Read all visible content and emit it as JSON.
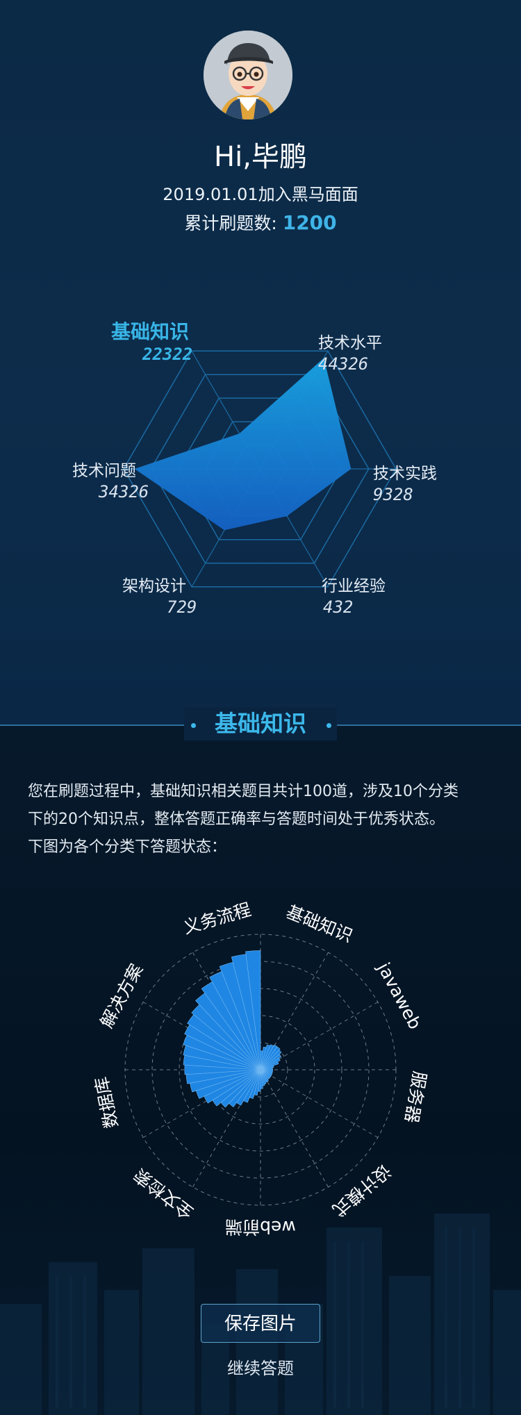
{
  "profile": {
    "greeting": "Hi,毕鹏",
    "join_text": "2019.01.01加入黑马面面",
    "total_label": "累计刷题数: ",
    "total_value": "1200"
  },
  "radar": {
    "dimensions": [
      {
        "label": "基础知识",
        "value": 22322,
        "display": "22322",
        "active": true
      },
      {
        "label": "技术水平",
        "value": 44326,
        "display": "44326",
        "active": false
      },
      {
        "label": "技术实践",
        "value": 9328,
        "display": "9328",
        "active": false
      },
      {
        "label": "行业经验",
        "value": 432,
        "display": "432",
        "active": false
      },
      {
        "label": "架构设计",
        "value": 729,
        "display": "729",
        "active": false
      },
      {
        "label": "技术问题",
        "value": 34326,
        "display": "34326",
        "active": false
      }
    ],
    "relative_levels": [
      0.3,
      0.94,
      0.67,
      0.4,
      0.52,
      0.92
    ],
    "colors": {
      "grid": "#1b6aa2",
      "fill_top": "#19a3e3",
      "fill_bottom": "#1461c4",
      "active": "#39b6e8"
    }
  },
  "section": {
    "title": "基础知识"
  },
  "description": {
    "line1": "您在刷题过程中，基础知识相关题目共计100道，涉及10个分类",
    "line2": "下的20个知识点，整体答题正确率与答题时间处于优秀状态。",
    "line3": "下图为各个分类下答题状态："
  },
  "polar": {
    "categories": [
      "义务流程",
      "基础知识",
      "javaweb",
      "服务器",
      "设计模式",
      "web前端",
      "全文检索",
      "数据库",
      "解决方案"
    ],
    "bars": [
      0.14,
      0.17,
      0.19,
      0.2,
      0.21,
      0.21,
      0.2,
      0.18,
      0.16,
      0.14,
      0.1,
      0.09,
      0.09,
      0.09,
      0.09,
      0.09,
      0.09,
      0.09,
      0.09,
      0.09,
      0.1,
      0.1,
      0.11,
      0.12,
      0.14,
      0.16,
      0.19,
      0.22,
      0.26,
      0.3,
      0.34,
      0.38,
      0.42,
      0.46,
      0.5,
      0.53,
      0.55,
      0.56,
      0.57,
      0.58,
      0.6,
      0.62,
      0.64,
      0.66,
      0.7,
      0.74,
      0.78,
      0.82,
      0.86,
      0.88
    ],
    "colors": {
      "bar": "#1f86e3",
      "grid": "#9aa8b8"
    }
  },
  "actions": {
    "save_label": "保存图片",
    "continue_label": "继续答题"
  }
}
